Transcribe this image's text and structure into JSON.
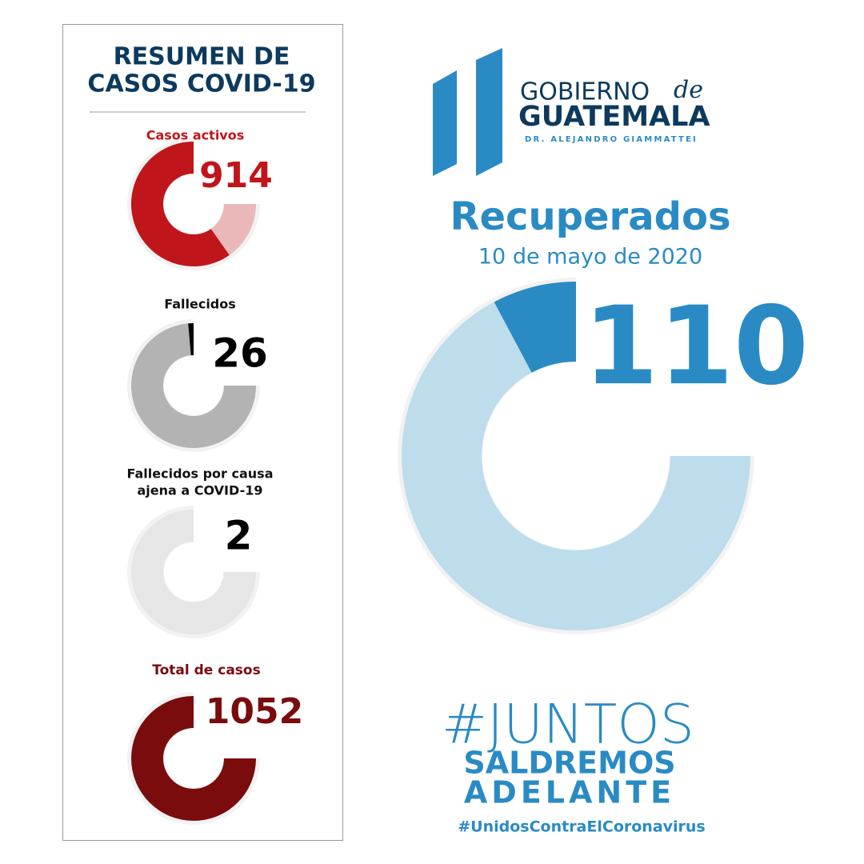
{
  "summary": {
    "title_lines": [
      "RESUMEN DE",
      "CASOS COVID-19"
    ],
    "items": [
      {
        "label_lines": [
          "Casos activos"
        ],
        "value": 914
      },
      {
        "label_lines": [
          "Fallecidos"
        ],
        "value": 26
      },
      {
        "label_lines": [
          "Fallecidos por causa",
          "ajena a COVID-19"
        ],
        "value": 2
      },
      {
        "label_lines": [
          "Total de casos"
        ],
        "value": 1052
      }
    ]
  },
  "logo": {
    "line1": "GOBIERNO",
    "de": "de",
    "line2": "GUATEMALA",
    "sub": "DR. ALEJANDRO GIAMMATTEI"
  },
  "highlight": {
    "title": "Recuperados",
    "date": "10 de mayo de 2020",
    "value": 110
  },
  "campaign": {
    "hashtag": "#JUNTOS",
    "line1": "SALDREMOS",
    "line2": "ADELANTE",
    "tag": "#UnidosContraElCoronavirus"
  }
}
